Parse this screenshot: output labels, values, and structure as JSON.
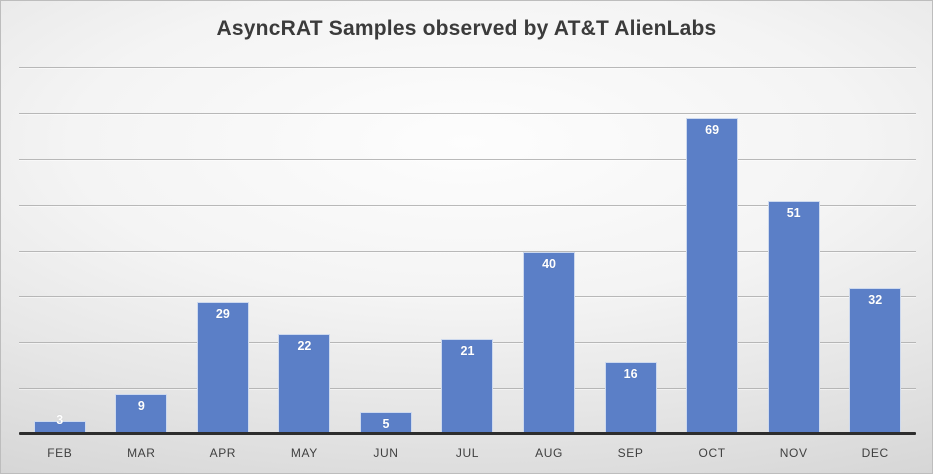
{
  "chart_data": {
    "type": "bar",
    "title": "AsyncRAT Samples observed by AT&T AlienLabs",
    "categories": [
      "FEB",
      "MAR",
      "APR",
      "MAY",
      "JUN",
      "JUL",
      "AUG",
      "SEP",
      "OCT",
      "NOV",
      "DEC"
    ],
    "values": [
      3,
      9,
      29,
      22,
      5,
      21,
      40,
      16,
      69,
      51,
      32
    ],
    "xlabel": "",
    "ylabel": "",
    "ylim": [
      0,
      80
    ],
    "gridline_step": 10,
    "grid": "horizontal",
    "legend": "none",
    "y_tick_labels": "none",
    "data_labels_position": "inside-end",
    "colors": {
      "bar": "#5B7FC7",
      "bar_border": "#cdd9ee",
      "data_label": "#ffffff",
      "title": "#3b3b3b",
      "tick_label": "#3f3f3f",
      "gridline": "#aeaeae",
      "axis_line": "#2d2d2d",
      "background_center": "#fdfdfd",
      "background_edge": "#c9c9c9"
    }
  }
}
